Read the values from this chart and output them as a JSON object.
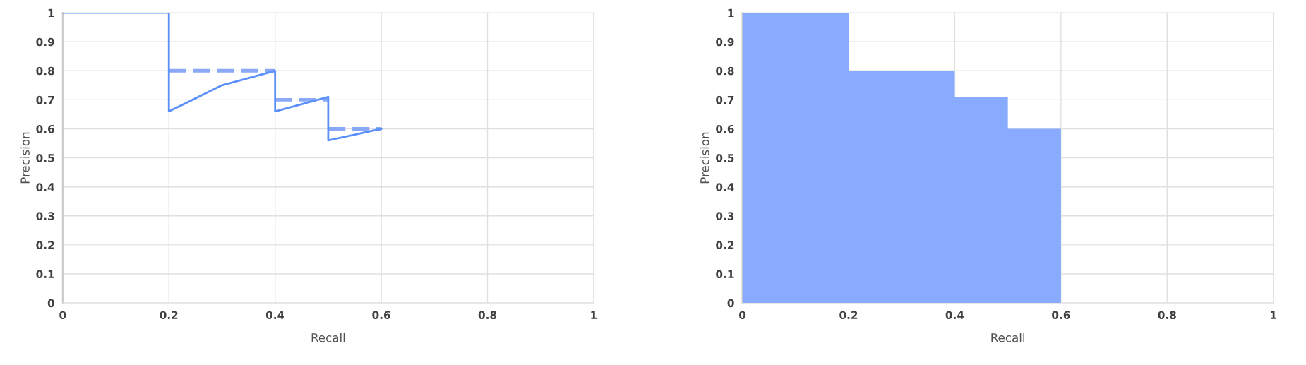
{
  "chart_data": [
    {
      "type": "line",
      "xlabel": "Recall",
      "ylabel": "Precision",
      "xlim": [
        0,
        1
      ],
      "ylim": [
        0,
        1
      ],
      "xticks": [
        0,
        0.2,
        0.4,
        0.6,
        0.8,
        1
      ],
      "yticks": [
        0,
        0.1,
        0.2,
        0.3,
        0.4,
        0.5,
        0.6,
        0.7,
        0.8,
        0.9,
        1
      ],
      "grid": true,
      "legend": false,
      "marker": "none",
      "series": [
        {
          "color": "#5b8ff9",
          "line_style": "solid",
          "x": [
            0,
            0.2,
            0.2,
            0.3,
            0.4,
            0.4,
            0.5,
            0.5,
            0.6
          ],
          "values": [
            1,
            1,
            0.66,
            0.75,
            0.8,
            0.66,
            0.71,
            0.56,
            0.6
          ]
        },
        {
          "color": "#8aa8f8",
          "line_style": "dashed",
          "x": [
            0.2,
            0.4
          ],
          "values": [
            0.8,
            0.8
          ]
        },
        {
          "color": "#8aa8f8",
          "line_style": "dashed",
          "x": [
            0.4,
            0.5
          ],
          "values": [
            0.7,
            0.7
          ]
        },
        {
          "color": "#8aa8f8",
          "line_style": "dashed",
          "x": [
            0.5,
            0.6
          ],
          "values": [
            0.6,
            0.6
          ]
        }
      ]
    },
    {
      "type": "area",
      "xlabel": "Recall",
      "ylabel": "Precision",
      "xlim": [
        0,
        1
      ],
      "ylim": [
        0,
        1
      ],
      "xticks": [
        0,
        0.2,
        0.4,
        0.6,
        0.8,
        1
      ],
      "yticks": [
        0,
        0.1,
        0.2,
        0.3,
        0.4,
        0.5,
        0.6,
        0.7,
        0.8,
        0.9,
        1
      ],
      "grid": true,
      "legend": false,
      "series": [
        {
          "color": "#88aaff",
          "x": [
            0,
            0.2,
            0.2,
            0.4,
            0.4,
            0.5,
            0.5,
            0.6
          ],
          "values": [
            1,
            1,
            0.8,
            0.8,
            0.71,
            0.71,
            0.6,
            0.6
          ]
        }
      ]
    }
  ]
}
